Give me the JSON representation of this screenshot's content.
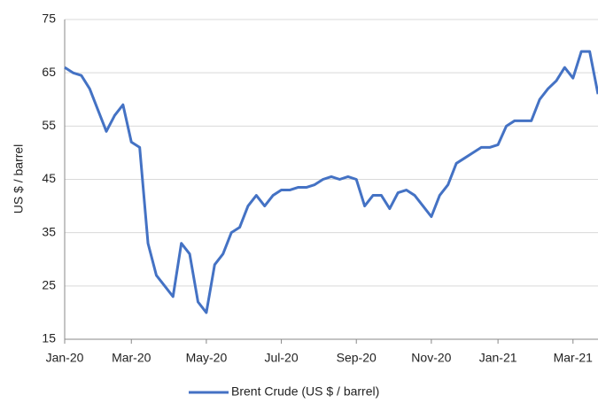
{
  "chart_data": {
    "type": "line",
    "y_label": "US $ / barrel",
    "categories": [
      "Jan-20",
      null,
      null,
      null,
      null,
      null,
      null,
      null,
      "Mar-20",
      null,
      null,
      null,
      null,
      null,
      null,
      null,
      null,
      "May-20",
      null,
      null,
      null,
      null,
      null,
      null,
      null,
      null,
      "Jul-20",
      null,
      null,
      null,
      null,
      null,
      null,
      null,
      null,
      "Sep-20",
      null,
      null,
      null,
      null,
      null,
      null,
      null,
      null,
      "Nov-20",
      null,
      null,
      null,
      null,
      null,
      null,
      null,
      "Jan-21",
      null,
      null,
      null,
      null,
      null,
      null,
      null,
      null,
      "Mar-21",
      null,
      null,
      null
    ],
    "series": [
      {
        "name": "Brent Crude (US $ / barrel)",
        "color": "#4472c4",
        "values": [
          66,
          65,
          64.5,
          62,
          58,
          54,
          57,
          59,
          52,
          51,
          33,
          27,
          25,
          23,
          33,
          31,
          22,
          20,
          29,
          31,
          35,
          36,
          40,
          42,
          40,
          42,
          43,
          43,
          43.5,
          43.5,
          44,
          45,
          45.5,
          45,
          45.5,
          45,
          40,
          42,
          42,
          39.5,
          42.5,
          43,
          42,
          40,
          38,
          42,
          44,
          48,
          49,
          50,
          51,
          51,
          51.5,
          55,
          56,
          56,
          56,
          60,
          62,
          63.5,
          66,
          64,
          69,
          69,
          61
        ]
      }
    ],
    "ylim": [
      15,
      75
    ],
    "yticks": [
      15,
      25,
      35,
      45,
      55,
      65,
      75
    ],
    "grid": true,
    "legend": "bottom"
  }
}
